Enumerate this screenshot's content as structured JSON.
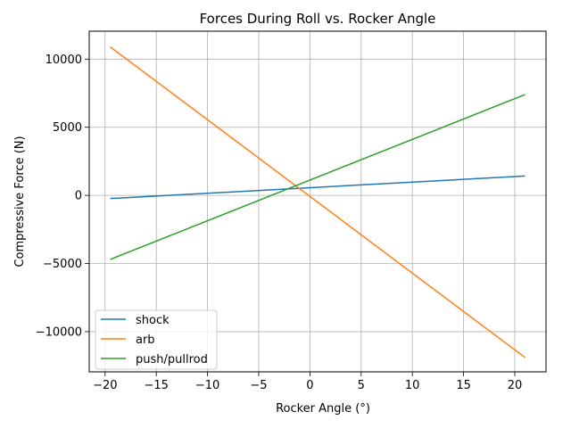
{
  "chart_data": {
    "type": "line",
    "title": "Forces During Roll vs. Rocker Angle",
    "xlabel": "Rocker Angle (°)",
    "ylabel": "Compressive Force (N)",
    "xlim": [
      -21.55,
      23.05
    ],
    "ylim": [
      -12950,
      12050
    ],
    "xticks": [
      -20,
      -15,
      -10,
      -5,
      0,
      5,
      10,
      15,
      20
    ],
    "xtick_labels": [
      "−20",
      "−15",
      "−10",
      "−5",
      "0",
      "5",
      "10",
      "15",
      "20"
    ],
    "yticks": [
      -10000,
      -5000,
      0,
      5000,
      10000
    ],
    "ytick_labels": [
      "−10000",
      "−5000",
      "0",
      "5000",
      "10000"
    ],
    "grid": true,
    "legend_position": "lower-left",
    "series": [
      {
        "name": "shock",
        "color": "#1f77b4",
        "x": [
          -19.5,
          21.0
        ],
        "y": [
          -230,
          1420
        ]
      },
      {
        "name": "arb",
        "color": "#ff7f0e",
        "x": [
          -19.5,
          21.0
        ],
        "y": [
          10900,
          -11900
        ]
      },
      {
        "name": "push/pullrod",
        "color": "#2ca02c",
        "x": [
          -19.5,
          21.0
        ],
        "y": [
          -4700,
          7400
        ]
      }
    ]
  }
}
